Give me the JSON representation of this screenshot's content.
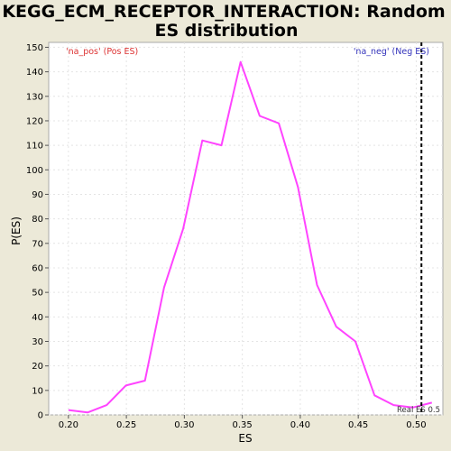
{
  "chart_data": {
    "type": "line",
    "title_lines": [
      "KEGG_ECM_RECEPTOR_INTERACTION: Random",
      "ES distribution"
    ],
    "xlabel": "ES",
    "ylabel": "P(ES)",
    "xlim": [
      0.183,
      0.523
    ],
    "ylim": [
      0,
      152
    ],
    "x_ticks": [
      0.2,
      0.25,
      0.3,
      0.35,
      0.4,
      0.45,
      0.5
    ],
    "x_tick_labels": [
      "0.20",
      "0.25",
      "0.30",
      "0.35",
      "0.40",
      "0.45",
      "0.50"
    ],
    "y_ticks": [
      0,
      10,
      20,
      30,
      40,
      50,
      60,
      70,
      80,
      90,
      100,
      110,
      120,
      130,
      140,
      150
    ],
    "y_tick_labels": [
      "0",
      "10",
      "20",
      "30",
      "40",
      "50",
      "60",
      "70",
      "80",
      "90",
      "100",
      "110",
      "120",
      "130",
      "140",
      "150"
    ],
    "grid": true,
    "series": [
      {
        "color": "#ff44ff",
        "x": [
          0.2,
          0.2165,
          0.233,
          0.2495,
          0.266,
          0.2825,
          0.299,
          0.3155,
          0.332,
          0.3485,
          0.365,
          0.3815,
          0.398,
          0.4145,
          0.431,
          0.4475,
          0.464,
          0.4805,
          0.497,
          0.5135
        ],
        "y": [
          2,
          1,
          4,
          12,
          14,
          52,
          76,
          112,
          110,
          144,
          122,
          119,
          93,
          53,
          36,
          30,
          8,
          4,
          3,
          5
        ]
      }
    ],
    "real_es": {
      "x": 0.5045,
      "label": "Real ES 0.5",
      "color": "#000000"
    },
    "legend": {
      "pos_label": "'na_pos' (Pos ES)",
      "pos_color": "#dd3333",
      "neg_label": "'na_neg' (Neg ES)",
      "neg_color": "#3333bb"
    },
    "colors": {
      "background": "#ece9d8",
      "plot_background": "#ffffff",
      "grid": "#e4e4e4"
    }
  }
}
